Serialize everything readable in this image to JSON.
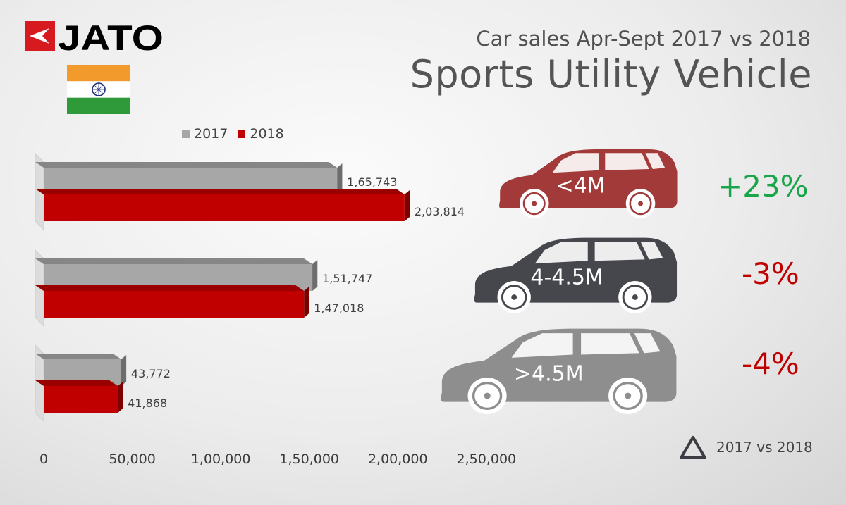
{
  "brand": "JATO",
  "header": {
    "subtitle": "Car sales Apr-Sept 2017 vs 2018",
    "title": "Sports Utility Vehicle"
  },
  "chart_data": {
    "type": "bar",
    "orientation": "horizontal",
    "categories": [
      "<4M",
      "4-4.5M",
      ">4.5M"
    ],
    "series": [
      {
        "name": "2017",
        "values": [
          165743,
          151747,
          43772
        ],
        "labels": [
          "1,65,743",
          "1,51,747",
          "43,772"
        ],
        "color": "#a7a7a7"
      },
      {
        "name": "2018",
        "values": [
          203814,
          147018,
          41868
        ],
        "labels": [
          "2,03,814",
          "1,47,018",
          "41,868"
        ],
        "color": "#c00000"
      }
    ],
    "xlim": [
      0,
      250000
    ],
    "xticks": [
      0,
      50000,
      100000,
      150000,
      200000,
      250000
    ],
    "xtick_labels": [
      "0",
      "50,000",
      "1,00,000",
      "1,50,000",
      "2,00,000",
      "2,50,000"
    ],
    "legend_position": "top-left",
    "grid": false,
    "change": [
      {
        "segment": "<4M",
        "value": "+23%",
        "color": "#19a64b",
        "car_color": "#a33a3a"
      },
      {
        "segment": "4-4.5M",
        "value": "-3%",
        "color": "#c00000",
        "car_color": "#46464d"
      },
      {
        "segment": ">4.5M",
        "value": "-4%",
        "color": "#c00000",
        "car_color": "#8e8e8e"
      }
    ],
    "delta_legend": "2017 vs 2018"
  }
}
